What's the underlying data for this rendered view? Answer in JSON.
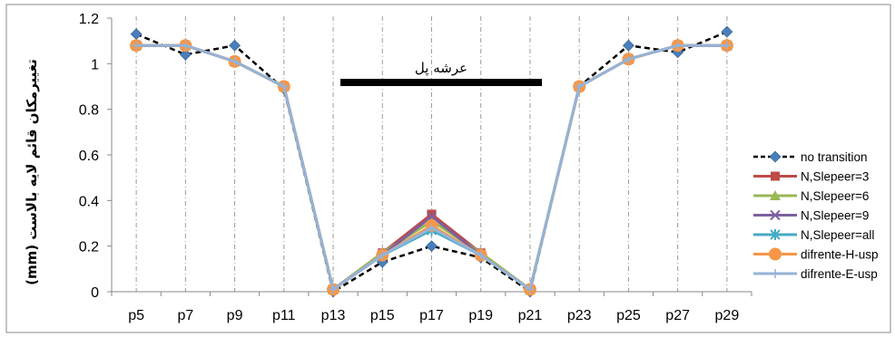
{
  "chart_data": {
    "type": "line",
    "ylabel": "تغییرمکان قائم لایه بالاست (mm)",
    "annotation": "عرشه پل",
    "ylim": [
      0,
      1.2
    ],
    "yticks": [
      "0",
      "0.2",
      "0.4",
      "0.6",
      "0.8",
      "1",
      "1.2"
    ],
    "categories": [
      "p5",
      "p7",
      "p9",
      "p11",
      "p13",
      "p15",
      "p17",
      "p19",
      "p21",
      "p23",
      "p25",
      "p27",
      "p29"
    ],
    "grid": "vertical dash-dot lines at categories",
    "legend_position": "right",
    "series": [
      {
        "name": "no transition",
        "color": "#000000",
        "marker_color": "#4a7ebb",
        "marker": "diamond",
        "dashed": true,
        "values": [
          1.13,
          1.04,
          1.08,
          0.89,
          0.0,
          0.13,
          0.2,
          0.15,
          0.0,
          0.9,
          1.08,
          1.05,
          1.14
        ]
      },
      {
        "name": "N,Slepeer=3",
        "color": "#be4b48",
        "marker": "square",
        "values": [
          1.08,
          1.08,
          1.01,
          0.9,
          0.01,
          0.17,
          0.34,
          0.17,
          0.01,
          0.9,
          1.02,
          1.08,
          1.08
        ]
      },
      {
        "name": "N,Slepeer=6",
        "color": "#98b954",
        "marker": "triangle",
        "values": [
          1.08,
          1.08,
          1.01,
          0.9,
          0.01,
          0.17,
          0.31,
          0.17,
          0.01,
          0.9,
          1.02,
          1.08,
          1.08
        ]
      },
      {
        "name": "N,Slepeer=9",
        "color": "#7d60a0",
        "marker": "x",
        "values": [
          1.08,
          1.08,
          1.01,
          0.9,
          0.01,
          0.16,
          0.33,
          0.16,
          0.01,
          0.9,
          1.02,
          1.08,
          1.08
        ]
      },
      {
        "name": "N,Slepeer=all",
        "color": "#46aac5",
        "marker": "asterisk",
        "values": [
          1.08,
          1.08,
          1.01,
          0.9,
          0.01,
          0.16,
          0.27,
          0.16,
          0.01,
          0.9,
          1.02,
          1.08,
          1.08
        ]
      },
      {
        "name": "difrente-H-usp",
        "color": "#f79646",
        "marker": "circle",
        "values": [
          1.08,
          1.08,
          1.01,
          0.9,
          0.01,
          0.16,
          0.29,
          0.16,
          0.01,
          0.9,
          1.02,
          1.08,
          1.08
        ]
      },
      {
        "name": "difrente-E-usp",
        "color": "#95b3d7",
        "marker": "plus",
        "values": [
          1.08,
          1.08,
          1.01,
          0.9,
          0.01,
          0.16,
          0.28,
          0.16,
          0.01,
          0.9,
          1.02,
          1.08,
          1.08
        ]
      }
    ]
  }
}
